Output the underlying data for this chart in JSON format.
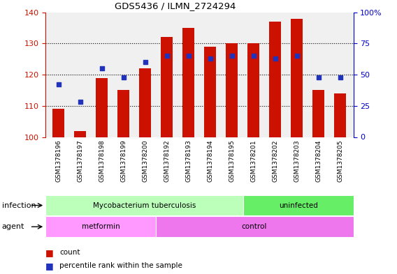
{
  "title": "GDS5436 / ILMN_2724294",
  "samples": [
    "GSM1378196",
    "GSM1378197",
    "GSM1378198",
    "GSM1378199",
    "GSM1378200",
    "GSM1378192",
    "GSM1378193",
    "GSM1378194",
    "GSM1378195",
    "GSM1378201",
    "GSM1378202",
    "GSM1378203",
    "GSM1378204",
    "GSM1378205"
  ],
  "counts": [
    109,
    102,
    119,
    115,
    122,
    132,
    135,
    129,
    130,
    130,
    137,
    138,
    115,
    114
  ],
  "percentiles": [
    42,
    28,
    55,
    48,
    60,
    65,
    65,
    63,
    65,
    65,
    63,
    65,
    48,
    48
  ],
  "ylim_left": [
    100,
    140
  ],
  "ylim_right": [
    0,
    100
  ],
  "yticks_left": [
    100,
    110,
    120,
    130,
    140
  ],
  "yticks_right": [
    0,
    25,
    50,
    75,
    100
  ],
  "bar_color": "#cc1100",
  "dot_color": "#2233bb",
  "background_color": "#ffffff",
  "plot_bg_color": "#f0f0f0",
  "left_label_color": "#cc1100",
  "right_label_color": "#0000cc",
  "infection_groups": [
    {
      "label": "Mycobacterium tuberculosis",
      "start": 0,
      "end": 9,
      "color": "#bbffbb"
    },
    {
      "label": "uninfected",
      "start": 9,
      "end": 14,
      "color": "#66ee66"
    }
  ],
  "agent_groups": [
    {
      "label": "metformin",
      "start": 0,
      "end": 5,
      "color": "#ff99ff"
    },
    {
      "label": "control",
      "start": 5,
      "end": 14,
      "color": "#ee77ee"
    }
  ],
  "legend_count_label": "count",
  "legend_pct_label": "percentile rank within the sample",
  "infection_label": "infection",
  "agent_label": "agent"
}
